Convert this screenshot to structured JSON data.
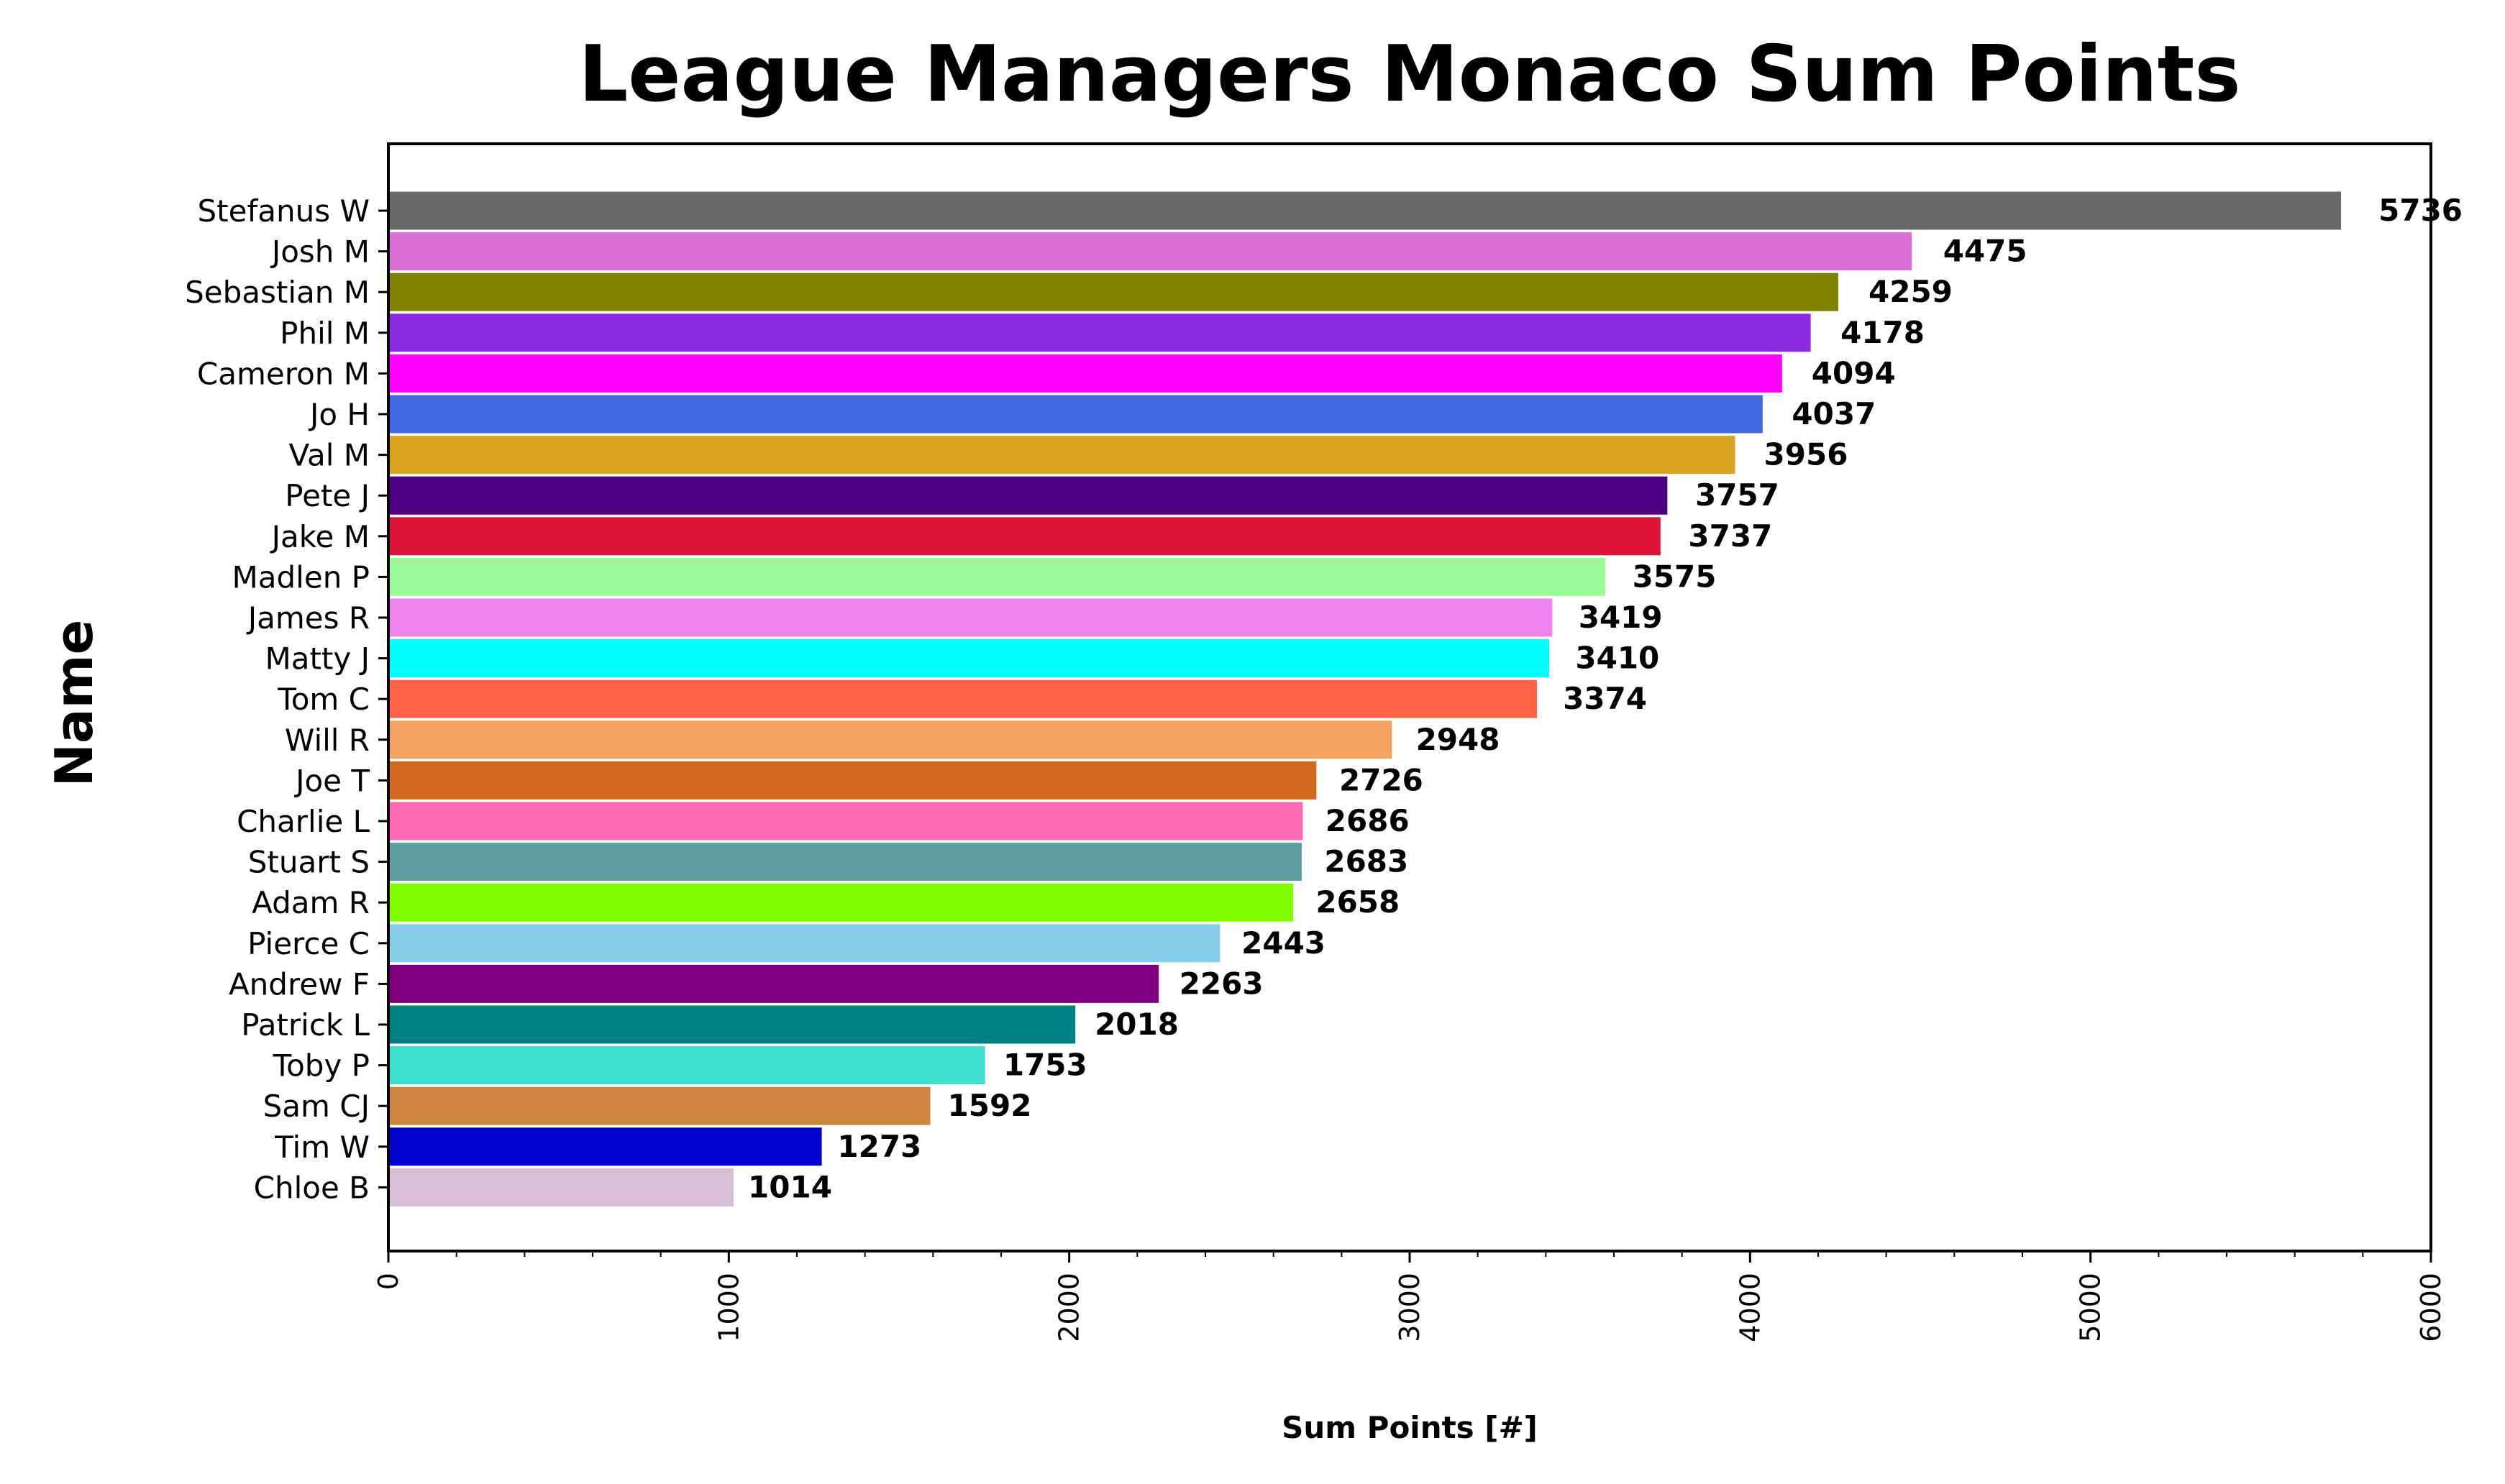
{
  "chart_data": {
    "type": "bar",
    "orientation": "horizontal",
    "title": "League Managers Monaco Sum Points",
    "xlabel": "Sum Points [#]",
    "ylabel": "Name",
    "xlim": [
      0,
      6000
    ],
    "xticks": [
      "0",
      "1000",
      "2000",
      "3000",
      "4000",
      "5000",
      "6000"
    ],
    "grid": false,
    "categories": [
      "Stefanus W",
      "Josh M",
      "Sebastian M",
      "Phil M",
      "Cameron M",
      "Jo H",
      "Val M",
      "Pete J",
      "Jake M",
      "Madlen P",
      "James R",
      "Matty J",
      "Tom C",
      "Will R",
      "Joe T",
      "Charlie L",
      "Stuart S",
      "Adam R",
      "Pierce C",
      "Andrew F",
      "Patrick L",
      "Toby P",
      "Sam CJ",
      "Tim W",
      "Chloe B"
    ],
    "values": [
      5736,
      4475,
      4259,
      4178,
      4094,
      4037,
      3956,
      3757,
      3737,
      3575,
      3419,
      3410,
      3374,
      2948,
      2726,
      2686,
      2683,
      2658,
      2443,
      2263,
      2018,
      1753,
      1592,
      1273,
      1014
    ],
    "labels": [
      "5736",
      "4475",
      "4259",
      "4178",
      "4094",
      "4037",
      "3956",
      "3757",
      "3737",
      "3575",
      "3419",
      "3410",
      "3374",
      "2948",
      "2726",
      "2686",
      "2683",
      "2658",
      "2443",
      "2263",
      "2018",
      "1753",
      "1592",
      "1273",
      "1014"
    ],
    "colors": [
      "#696969",
      "#da70d6",
      "#808000",
      "#8a2be2",
      "#ff00ff",
      "#4169e1",
      "#daa520",
      "#4b0082",
      "#dc143c",
      "#98fb98",
      "#ee82ee",
      "#00ffff",
      "#ff6347",
      "#f4a460",
      "#d2691e",
      "#ff69b4",
      "#5f9ea0",
      "#7fff00",
      "#87ceeb",
      "#800080",
      "#008080",
      "#40e0d0",
      "#cd853f",
      "#0000cd",
      "#d8bfd8"
    ]
  }
}
